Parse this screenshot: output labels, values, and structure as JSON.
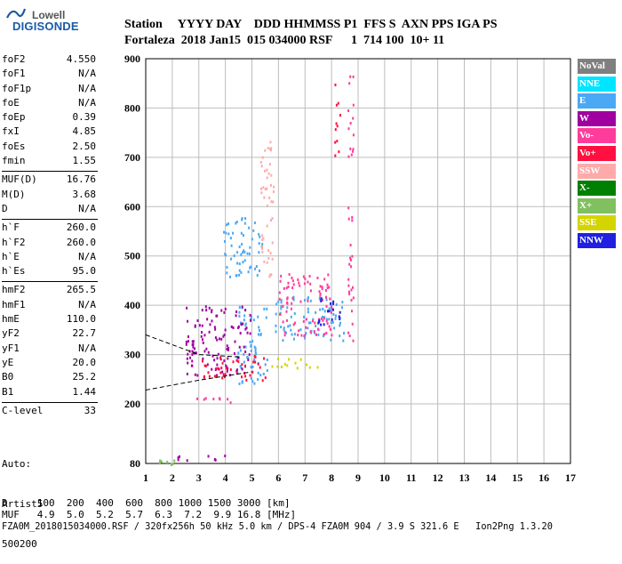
{
  "logo": {
    "line1": "Lowell",
    "line2": "DIGISONDE"
  },
  "header": {
    "line1": "Station     YYYY DAY    DDD HHMMSS P1  FFS S  AXN PPS IGA PS",
    "line2": "Fortaleza  2018 Jan15  015 034000 RSF      1  714 100  10+ 11"
  },
  "params": [
    {
      "name": "foF2",
      "value": "4.550"
    },
    {
      "name": "foF1",
      "value": "N/A"
    },
    {
      "name": "foF1p",
      "value": "N/A"
    },
    {
      "name": "foE",
      "value": "N/A"
    },
    {
      "name": "foEp",
      "value": "0.39"
    },
    {
      "name": "fxI",
      "value": "4.85"
    },
    {
      "name": "foEs",
      "value": "2.50"
    },
    {
      "name": "fmin",
      "value": "1.55"
    },
    {
      "sep": true
    },
    {
      "name": "MUF(D)",
      "value": "16.76"
    },
    {
      "name": "M(D)",
      "value": "3.68"
    },
    {
      "name": "D",
      "value": "N/A"
    },
    {
      "sep": true
    },
    {
      "name": "h`F",
      "value": "260.0"
    },
    {
      "name": "h`F2",
      "value": "260.0"
    },
    {
      "name": "h`E",
      "value": "N/A"
    },
    {
      "name": "h`Es",
      "value": "95.0"
    },
    {
      "sep": true
    },
    {
      "name": "hmF2",
      "value": "265.5"
    },
    {
      "name": "hmF1",
      "value": "N/A"
    },
    {
      "name": "hmE",
      "value": "110.0"
    },
    {
      "name": "yF2",
      "value": "22.7"
    },
    {
      "name": "yF1",
      "value": "N/A"
    },
    {
      "name": "yE",
      "value": "20.0"
    },
    {
      "name": "B0",
      "value": "25.2"
    },
    {
      "name": "B1",
      "value": "1.44"
    },
    {
      "sep": true
    },
    {
      "name": "C-level",
      "value": "33"
    }
  ],
  "auto": {
    "line1": "Auto:",
    "line2": "Artist5",
    "line3": "500200"
  },
  "legend": [
    {
      "label": "NoVal",
      "color": "#7f7f7f"
    },
    {
      "label": "NNE",
      "color": "#00e5ff"
    },
    {
      "label": "E",
      "color": "#4aa8f5"
    },
    {
      "label": "W",
      "color": "#a000a0"
    },
    {
      "label": "Vo-",
      "color": "#ff3c9c"
    },
    {
      "label": "Vo+",
      "color": "#ff1040"
    },
    {
      "label": "SSW",
      "color": "#ffaaaa"
    },
    {
      "label": "X-",
      "color": "#008000"
    },
    {
      "label": "X+",
      "color": "#80c060"
    },
    {
      "label": "SSE",
      "color": "#d4d400"
    },
    {
      "label": "NNW",
      "color": "#2020e0"
    }
  ],
  "footer": {
    "d_row": "D     100  200  400  600  800 1000 1500 3000 [km]",
    "muf_row": "MUF   4.9  5.0  5.2  5.7  6.3  7.2  9.9 16.8 [MHz]",
    "file_row": "FZA0M_2018015034000.RSF / 320fx256h 50 kHz 5.0 km / DPS-4 FZA0M 904 / 3.9 S 321.6 E   Ion2Png 1.3.20"
  },
  "chart_data": {
    "type": "scatter",
    "title": "",
    "xlabel": "",
    "ylabel": "",
    "xlim": [
      1,
      17
    ],
    "ylim": [
      80,
      900
    ],
    "xticks": [
      1,
      2,
      3,
      4,
      5,
      6,
      7,
      8,
      9,
      10,
      11,
      12,
      13,
      14,
      15,
      16,
      17
    ],
    "yticks": [
      80,
      200,
      300,
      400,
      500,
      600,
      700,
      800,
      900
    ],
    "grid": true,
    "clusters": [
      {
        "series": "E",
        "x": [
          4.4,
          5.6
        ],
        "y": [
          240,
          400
        ]
      },
      {
        "series": "E",
        "x": [
          3.9,
          5.4
        ],
        "y": [
          460,
          580
        ]
      },
      {
        "series": "W",
        "x": [
          2.5,
          5.0
        ],
        "y": [
          260,
          400
        ]
      },
      {
        "series": "Vo+",
        "x": [
          3.0,
          5.5
        ],
        "y": [
          250,
          300
        ]
      },
      {
        "series": "Vo-",
        "x": [
          2.6,
          4.2
        ],
        "y": [
          205,
          215
        ]
      },
      {
        "series": "W",
        "x": [
          2.0,
          4.0
        ],
        "y": [
          88,
          98
        ]
      },
      {
        "series": "X+",
        "x": [
          1.4,
          2.2
        ],
        "y": [
          80,
          90
        ]
      },
      {
        "series": "SSE",
        "x": [
          5.5,
          7.5
        ],
        "y": [
          275,
          295
        ]
      },
      {
        "series": "E",
        "x": [
          5.8,
          8.5
        ],
        "y": [
          330,
          420
        ]
      },
      {
        "series": "Vo-",
        "x": [
          6.0,
          8.0
        ],
        "y": [
          340,
          470
        ]
      },
      {
        "series": "NNW",
        "x": [
          7.4,
          8.3
        ],
        "y": [
          360,
          420
        ]
      },
      {
        "series": "SSW",
        "x": [
          5.3,
          5.8
        ],
        "y": [
          460,
          740
        ]
      },
      {
        "series": "Vo+",
        "x": [
          8.1,
          8.3
        ],
        "y": [
          700,
          870
        ]
      },
      {
        "series": "Vo-",
        "x": [
          8.6,
          8.8
        ],
        "y": [
          330,
          890
        ]
      }
    ],
    "profile_curves": [
      {
        "x": [
          1.0,
          3.0,
          4.6
        ],
        "y": [
          340,
          300,
          295
        ]
      },
      {
        "x": [
          1.0,
          3.0,
          5.0
        ],
        "y": [
          228,
          248,
          265
        ]
      }
    ]
  }
}
